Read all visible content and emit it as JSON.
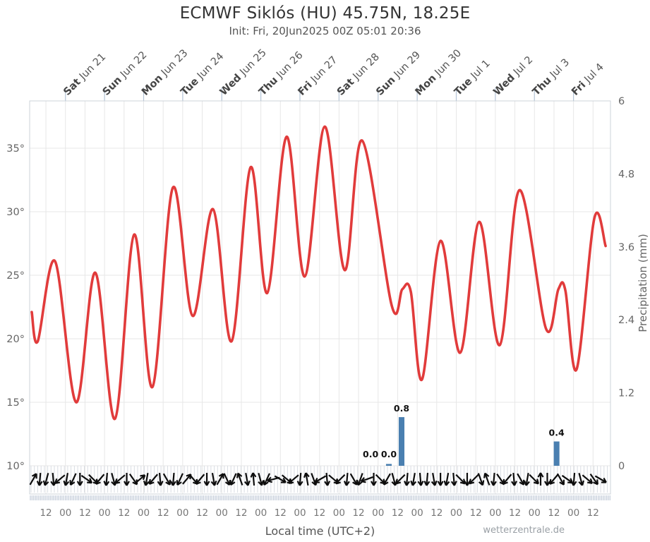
{
  "header": {
    "title": "ECMWF Siklós (HU) 45.75N, 18.25E",
    "subtitle": "Init: Fri, 20Jun2025 00Z 05:01 20:36"
  },
  "footer": {
    "watermark": "wetterzentrale.de"
  },
  "colors": {
    "temperature_line": "#e13b3b",
    "precipitation_bar": "#4a7fb0",
    "wind_arrow": "#0d0d0d",
    "grid": "#e7e7e7",
    "frame": "#ccd3da",
    "day_tick": "#b4c4d6",
    "comb": "#d9dde3",
    "mini_comb": "#c2cbd8",
    "axis_text": "#666",
    "day_text_bold": "#444",
    "day_text": "#555"
  },
  "chart_data": {
    "type": "line",
    "title": "ECMWF Siklós (HU) 45.75N, 18.25E",
    "subtitle": "Init: Fri, 20Jun2025 00Z 05:01 20:36",
    "legend_position": "none",
    "grid": "on",
    "x_axis": {
      "title": "Local time (UTC+2)",
      "start": "Fri Jun 20 02:00 local (UTC+2), model init 00Z",
      "hours_total": 356.7,
      "day_labels": [
        {
          "dow": "Sat",
          "date": "Jun 21"
        },
        {
          "dow": "Sun",
          "date": "Jun 22"
        },
        {
          "dow": "Mon",
          "date": "Jun 23"
        },
        {
          "dow": "Tue",
          "date": "Jun 24"
        },
        {
          "dow": "Wed",
          "date": "Jun 25"
        },
        {
          "dow": "Thu",
          "date": "Jun 26"
        },
        {
          "dow": "Fri",
          "date": "Jun 27"
        },
        {
          "dow": "Sat",
          "date": "Jun 28"
        },
        {
          "dow": "Sun",
          "date": "Jun 29"
        },
        {
          "dow": "Mon",
          "date": "Jun 30"
        },
        {
          "dow": "Tue",
          "date": "Jul 1"
        },
        {
          "dow": "Wed",
          "date": "Jul 2"
        },
        {
          "dow": "Thu",
          "date": "Jul 3"
        },
        {
          "dow": "Fri",
          "date": "Jul 4"
        }
      ],
      "day_start_hours": [
        22,
        46,
        70,
        94,
        118,
        142,
        166,
        190,
        214,
        238,
        262,
        286,
        310,
        334
      ],
      "time_tick_first_hour": 10,
      "time_tick_step_hours": 12,
      "time_tick_labels": [
        "12",
        "00",
        "12",
        "00",
        "12",
        "00",
        "12",
        "00",
        "12",
        "00",
        "12",
        "00",
        "12",
        "00",
        "12",
        "00",
        "12",
        "00",
        "12",
        "00",
        "12",
        "00",
        "12",
        "00",
        "12",
        "00",
        "12",
        "00",
        "12"
      ]
    },
    "y_axis_temperature": {
      "side": "left",
      "unit": "°C",
      "tick_labels": [
        "35°",
        "30°",
        "25°",
        "20°",
        "15°",
        "10°"
      ],
      "tick_values": [
        35,
        30,
        25,
        20,
        15,
        10
      ],
      "range_min": 10,
      "range_max": 38.7
    },
    "y_axis_precipitation": {
      "side": "right",
      "title": "Precipitation (mm)",
      "tick_labels": [
        "6",
        "4.8",
        "3.6",
        "2.4",
        "1.2",
        "0"
      ],
      "tick_values": [
        6,
        4.8,
        3.6,
        2.4,
        1.2,
        0
      ],
      "range_min": 0,
      "range_max": 6
    },
    "temperature_series": {
      "name": "2m temperature (°C)",
      "color": "#e13b3b",
      "points_hour_degC": [
        [
          1.3,
          22.1
        ],
        [
          5,
          19.8
        ],
        [
          15.6,
          26.1
        ],
        [
          28.6,
          15.0
        ],
        [
          40.3,
          25.2
        ],
        [
          52.4,
          13.7
        ],
        [
          64.2,
          28.2
        ],
        [
          75.4,
          16.2
        ],
        [
          88.0,
          31.9
        ],
        [
          100.1,
          21.8
        ],
        [
          112.6,
          30.2
        ],
        [
          124.0,
          19.8
        ],
        [
          135.7,
          33.5
        ],
        [
          145.9,
          23.6
        ],
        [
          157.8,
          35.9
        ],
        [
          168.9,
          24.9
        ],
        [
          181.2,
          36.7
        ],
        [
          193.5,
          25.4
        ],
        [
          204.2,
          35.6
        ],
        [
          222.4,
          22.6
        ],
        [
          228.9,
          23.9
        ],
        [
          234.1,
          23.7
        ],
        [
          241.0,
          16.8
        ],
        [
          252.3,
          27.7
        ],
        [
          264.4,
          18.9
        ],
        [
          276.1,
          29.2
        ],
        [
          288.7,
          19.5
        ],
        [
          300.8,
          31.7
        ],
        [
          317.1,
          20.8
        ],
        [
          324.7,
          23.9
        ],
        [
          329.0,
          23.8
        ],
        [
          335.9,
          17.6
        ],
        [
          346.8,
          29.5
        ],
        [
          353.7,
          27.3
        ]
      ],
      "daily_extremes_note": "maxima: 26.1, 25.2, 28.2, 31.9, 30.2, 33.5, 35.9, 36.7, 35.6, 23.9, 27.7, 29.2, 31.7, 23.9, 29.5; minima: 19.8, 15.0, 13.7, 16.2, 21.8, 19.8, 23.6, 24.9, 25.4, 22.6, 16.8, 18.9, 19.5, 20.8, 17.6"
    },
    "precipitation_series": {
      "name": "Precipitation (mm)",
      "color": "#4a7fb0",
      "bar_width_hours": 3.5,
      "bars": [
        {
          "hour": 209.4,
          "mm": 0.0,
          "label": "0.0"
        },
        {
          "hour": 220.6,
          "mm": 0.03,
          "label": "0.0"
        },
        {
          "hour": 228.4,
          "mm": 0.8,
          "label": "0.8"
        },
        {
          "hour": 323.6,
          "mm": 0.4,
          "label": "0.4"
        }
      ]
    },
    "wind_series": {
      "name": "10m wind direction arrows",
      "color": "#0d0d0d",
      "start_hour": 2.2,
      "step_hours": 4.1,
      "angles_deg": [
        300,
        95,
        105,
        85,
        140,
        100,
        115,
        90,
        35,
        45,
        130,
        95,
        75,
        140,
        90,
        55,
        320,
        100,
        130,
        85,
        60,
        95,
        115,
        310,
        50,
        130,
        90,
        80,
        300,
        65,
        115,
        250,
        80,
        265,
        75,
        115,
        165,
        30,
        40,
        140,
        95,
        260,
        70,
        150,
        85,
        40,
        135,
        95,
        60,
        110,
        160,
        90,
        45,
        120,
        75,
        135,
        95,
        100,
        85,
        95,
        80,
        90,
        100,
        85,
        45,
        90,
        135,
        70,
        250,
        95,
        55,
        130,
        85,
        60,
        100,
        45,
        270,
        90,
        130,
        60,
        35,
        95,
        75,
        40,
        55,
        30
      ]
    }
  }
}
